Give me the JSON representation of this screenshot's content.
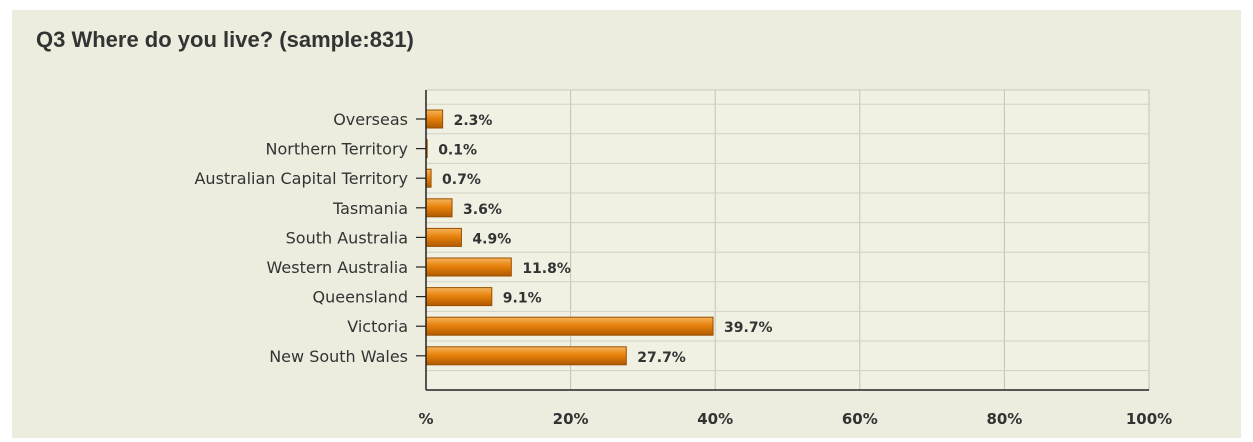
{
  "chart_data": {
    "type": "bar",
    "orientation": "horizontal",
    "title": "Q3 Where do you live? (sample:831)",
    "categories": [
      "Overseas",
      "Northern Territory",
      "Australian Capital Territory",
      "Tasmania",
      "South Australia",
      "Western Australia",
      "Queensland",
      "Victoria",
      "New South Wales"
    ],
    "values": [
      2.3,
      0.1,
      0.7,
      3.6,
      4.9,
      11.8,
      9.1,
      39.7,
      27.7
    ],
    "value_labels": [
      "2.3%",
      "0.1%",
      "0.7%",
      "3.6%",
      "4.9%",
      "11.8%",
      "9.1%",
      "39.7%",
      "27.7%"
    ],
    "xlim": [
      0,
      100
    ],
    "x_ticks": [
      0,
      20,
      40,
      60,
      80,
      100
    ],
    "x_tick_labels": [
      "%",
      "20%",
      "40%",
      "60%",
      "80%",
      "100%"
    ],
    "grid": true,
    "bar_color": "#e8820c"
  }
}
